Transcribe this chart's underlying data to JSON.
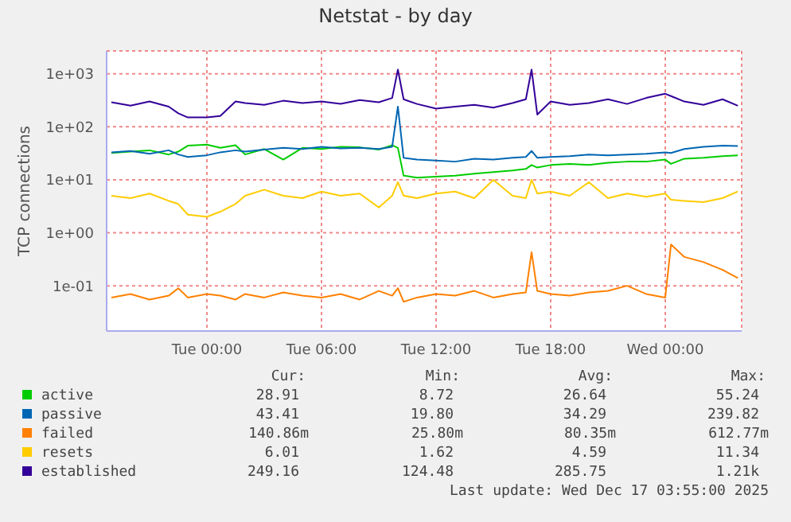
{
  "chart_data": {
    "type": "line",
    "title": "Netstat - by day",
    "ylabel": "TCP connections",
    "log": "y",
    "grid": true,
    "legend": "bottom",
    "marker": "none",
    "line_style": "solid",
    "x": [
      "2025-12-15T19:00",
      "2025-12-15T20:00",
      "2025-12-15T21:00",
      "2025-12-15T22:00",
      "2025-12-15T22:30",
      "2025-12-15T23:00",
      "2025-12-16T00:00",
      "2025-12-16T00:42",
      "2025-12-16T01:30",
      "2025-12-16T02:00",
      "2025-12-16T03:00",
      "2025-12-16T04:00",
      "2025-12-16T05:00",
      "2025-12-16T06:00",
      "2025-12-16T07:00",
      "2025-12-16T08:00",
      "2025-12-16T09:00",
      "2025-12-16T09:42",
      "2025-12-16T10:00",
      "2025-12-16T10:18",
      "2025-12-16T11:00",
      "2025-12-16T12:00",
      "2025-12-16T13:00",
      "2025-12-16T14:00",
      "2025-12-16T15:00",
      "2025-12-16T16:00",
      "2025-12-16T16:42",
      "2025-12-16T17:00",
      "2025-12-16T17:18",
      "2025-12-16T18:00",
      "2025-12-16T19:00",
      "2025-12-16T20:00",
      "2025-12-16T21:00",
      "2025-12-16T22:00",
      "2025-12-16T23:00",
      "2025-12-17T00:00",
      "2025-12-17T00:18",
      "2025-12-17T01:00",
      "2025-12-17T02:00",
      "2025-12-17T03:00",
      "2025-12-17T03:48"
    ],
    "xlim": [
      "2025-12-15T18:45",
      "2025-12-17T04:00"
    ],
    "xticks": [
      {
        "value": "2025-12-16T00:00",
        "label": "Tue 00:00"
      },
      {
        "value": "2025-12-16T06:00",
        "label": "Tue 06:00"
      },
      {
        "value": "2025-12-16T12:00",
        "label": "Tue 12:00"
      },
      {
        "value": "2025-12-16T18:00",
        "label": "Tue 18:00"
      },
      {
        "value": "2025-12-17T00:00",
        "label": "Wed 00:00"
      }
    ],
    "ylim": [
      0.014,
      2700
    ],
    "yticks": [
      {
        "value": 0.1,
        "label": "1e-01"
      },
      {
        "value": 1,
        "label": "1e+00"
      },
      {
        "value": 10,
        "label": "1e+01"
      },
      {
        "value": 100,
        "label": "1e+02"
      },
      {
        "value": 1000,
        "label": "1e+03"
      }
    ],
    "series": [
      {
        "name": "active",
        "color": "#00cc00",
        "values": [
          32,
          34,
          36,
          30,
          34,
          44,
          46,
          40,
          45,
          30,
          38,
          24,
          40,
          38,
          42,
          41,
          37,
          45,
          40,
          12,
          11,
          11.5,
          12,
          13,
          14,
          15,
          16,
          19,
          17,
          19,
          20,
          19,
          21,
          22,
          22,
          24,
          20,
          25,
          26,
          28,
          28.91
        ]
      },
      {
        "name": "passive",
        "color": "#0066b3",
        "values": [
          33,
          35,
          31,
          36,
          30,
          27,
          29,
          33,
          36,
          34,
          37,
          40,
          38,
          42,
          39,
          40,
          38,
          42,
          240,
          26,
          24,
          23,
          22,
          25,
          24,
          26,
          27,
          35,
          26,
          27,
          28,
          30,
          29,
          30,
          31,
          33,
          32,
          38,
          42,
          44,
          43.41
        ]
      },
      {
        "name": "failed",
        "color": "#ff8000",
        "values": [
          0.06,
          0.07,
          0.055,
          0.065,
          0.09,
          0.06,
          0.07,
          0.065,
          0.055,
          0.07,
          0.06,
          0.075,
          0.065,
          0.06,
          0.07,
          0.055,
          0.08,
          0.065,
          0.09,
          0.05,
          0.06,
          0.07,
          0.065,
          0.08,
          0.06,
          0.07,
          0.075,
          0.43,
          0.08,
          0.07,
          0.065,
          0.075,
          0.08,
          0.1,
          0.07,
          0.06,
          0.6,
          0.35,
          0.28,
          0.2,
          0.14
        ]
      },
      {
        "name": "resets",
        "color": "#ffcc00",
        "values": [
          5,
          4.5,
          5.5,
          4,
          3.5,
          2.2,
          2,
          2.5,
          3.5,
          5,
          6.5,
          5,
          4.5,
          6,
          5,
          5.5,
          3,
          5,
          9,
          5,
          4.5,
          5.5,
          6,
          4.5,
          10,
          5,
          4.5,
          10,
          5.5,
          6,
          5,
          9,
          4.5,
          5.5,
          4.8,
          5.5,
          4.2,
          4,
          3.8,
          4.5,
          6.01
        ]
      },
      {
        "name": "established",
        "color": "#330099",
        "values": [
          290,
          250,
          300,
          240,
          180,
          150,
          150,
          160,
          300,
          280,
          260,
          310,
          280,
          300,
          270,
          320,
          290,
          350,
          1200,
          330,
          270,
          220,
          240,
          260,
          230,
          280,
          330,
          1200,
          170,
          300,
          260,
          280,
          330,
          270,
          350,
          420,
          380,
          300,
          260,
          330,
          250
        ]
      }
    ],
    "annotations": [
      "Cur:",
      "Min:",
      "Avg:",
      "Max:",
      "28.91",
      "8.72",
      "26.64",
      "55.24",
      "43.41",
      "19.80",
      "34.29",
      "239.82",
      "140.86m",
      "25.80m",
      "80.35m",
      "612.77m",
      "6.01",
      "1.62",
      "4.59",
      "11.34",
      "249.16",
      "124.48",
      "285.75",
      "1.21k",
      "Last update: Wed Dec 17 03:55:00 2025"
    ]
  }
}
